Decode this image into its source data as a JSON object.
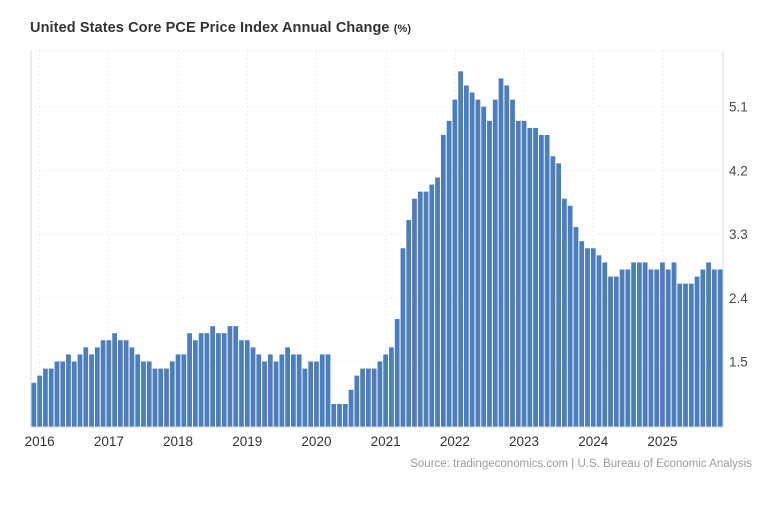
{
  "header": {
    "title": "United States Core PCE Price Index Annual Change",
    "unit": "(%)"
  },
  "source_note": "Source: tradingeconomics.com | U.S. Bureau of Economic Analysis",
  "colors": {
    "bar": "#4d7ebc",
    "grid": "#e3e3e3",
    "plot_border": "#d9d9d9",
    "title_text": "#333333",
    "tick_text": "#4a4a4a",
    "source_text": "#9b9b9b",
    "background": "#ffffff"
  },
  "chart_data": {
    "type": "bar",
    "title": "United States Core PCE Price Index Annual Change (%)",
    "xlabel": "",
    "ylabel": "",
    "unit": "percent",
    "frequency": "monthly",
    "x_start_month": "2015-12",
    "x_end_month": "2025-11",
    "x_tick_labels": [
      "2016",
      "2017",
      "2018",
      "2019",
      "2020",
      "2021",
      "2022",
      "2023",
      "2024",
      "2025"
    ],
    "y_ticks": [
      1.5,
      2.4,
      3.3,
      4.2,
      5.1
    ],
    "ylim": [
      0.58,
      5.9
    ],
    "grid": "dotted horizontal and vertical",
    "legend": "none",
    "values_by_year": {
      "2015": [
        1.2
      ],
      "2016": [
        1.3,
        1.4,
        1.4,
        1.5,
        1.5,
        1.6,
        1.5,
        1.6,
        1.7,
        1.6,
        1.7,
        1.8
      ],
      "2017": [
        1.8,
        1.9,
        1.8,
        1.8,
        1.7,
        1.6,
        1.5,
        1.5,
        1.4,
        1.4,
        1.4,
        1.5
      ],
      "2018": [
        1.6,
        1.6,
        1.9,
        1.8,
        1.9,
        1.9,
        2.0,
        1.9,
        1.9,
        2.0,
        2.0,
        1.8
      ],
      "2019": [
        1.8,
        1.7,
        1.6,
        1.5,
        1.6,
        1.5,
        1.6,
        1.7,
        1.6,
        1.6,
        1.4,
        1.5
      ],
      "2020": [
        1.5,
        1.6,
        1.6,
        0.9,
        0.9,
        0.9,
        1.1,
        1.3,
        1.4,
        1.4,
        1.4,
        1.5
      ],
      "2021": [
        1.6,
        1.7,
        2.1,
        3.1,
        3.5,
        3.8,
        3.9,
        3.9,
        4.0,
        4.1,
        4.7,
        4.9
      ],
      "2022": [
        5.2,
        5.6,
        5.4,
        5.3,
        5.2,
        5.1,
        4.9,
        5.2,
        5.5,
        5.4,
        5.2,
        4.9
      ],
      "2023": [
        4.9,
        4.8,
        4.8,
        4.7,
        4.7,
        4.4,
        4.3,
        3.8,
        3.7,
        3.4,
        3.2,
        3.1
      ],
      "2024": [
        3.1,
        3.0,
        2.9,
        2.7,
        2.7,
        2.8,
        2.8,
        2.9,
        2.9,
        2.9,
        2.8,
        2.8
      ],
      "2025": [
        2.9,
        2.8,
        2.9,
        2.6,
        2.6,
        2.6,
        2.7,
        2.8,
        2.9,
        2.8,
        2.8
      ]
    }
  }
}
